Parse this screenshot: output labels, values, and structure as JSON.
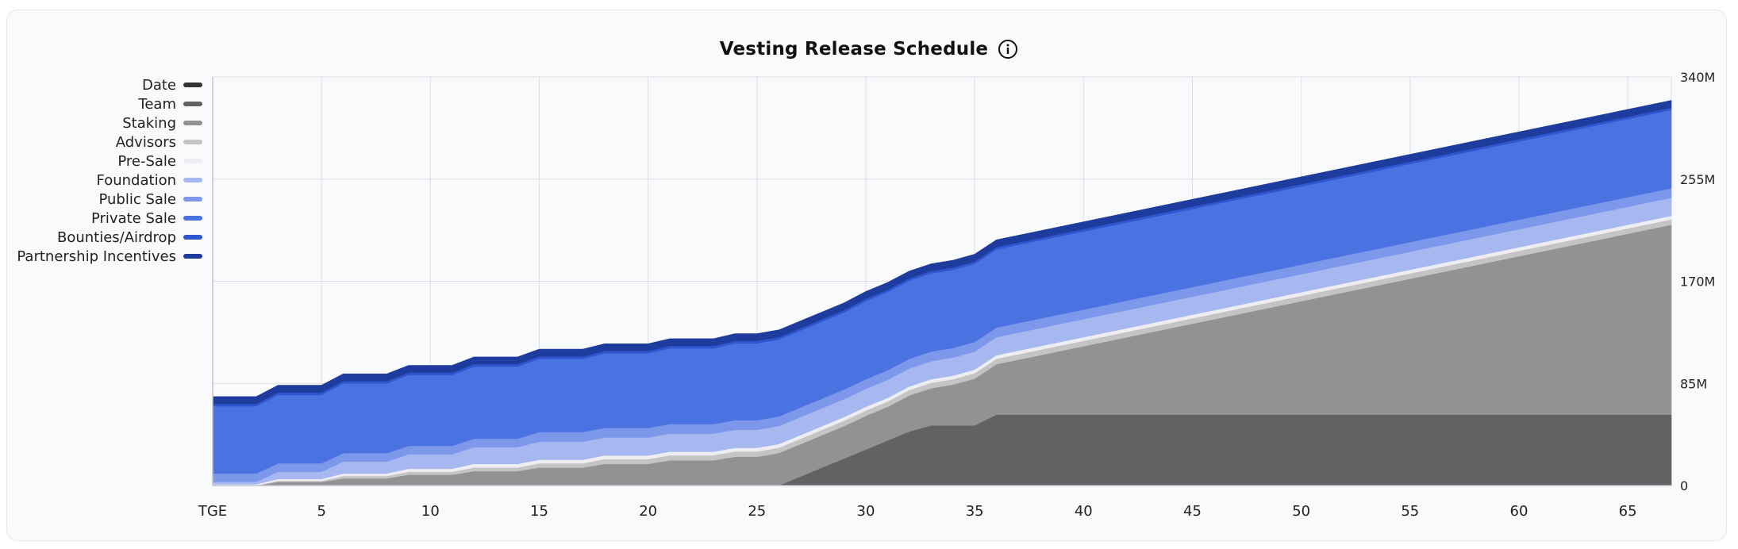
{
  "chart_data": {
    "type": "area",
    "stacked": true,
    "title": "Vesting Release Schedule",
    "x_tick_labels": [
      "TGE",
      "5",
      "10",
      "15",
      "20",
      "25",
      "30",
      "35",
      "40",
      "45",
      "50",
      "55",
      "60",
      "65"
    ],
    "x_tick_values": [
      0,
      5,
      10,
      15,
      20,
      25,
      30,
      35,
      40,
      45,
      50,
      55,
      60,
      65
    ],
    "xlim": [
      0,
      67
    ],
    "y_tick_labels": [
      "0",
      "85M",
      "170M",
      "255M",
      "340M"
    ],
    "y_tick_values": [
      0,
      85,
      170,
      255,
      340
    ],
    "ylim": [
      0,
      340
    ],
    "y_axis_position": "right",
    "grid": true,
    "legend_position": "left",
    "x": [
      0,
      1,
      2,
      3,
      4,
      5,
      6,
      7,
      8,
      9,
      10,
      11,
      12,
      13,
      14,
      15,
      16,
      17,
      18,
      19,
      20,
      21,
      22,
      23,
      24,
      25,
      26,
      27,
      28,
      29,
      30,
      31,
      32,
      33,
      34,
      35,
      36,
      67
    ],
    "series": [
      {
        "name": "Date",
        "color": "#333333",
        "values": [
          0,
          0,
          0,
          0,
          0,
          0,
          0,
          0,
          0,
          0,
          0,
          0,
          0,
          0,
          0,
          0,
          0,
          0,
          0,
          0,
          0,
          0,
          0,
          0,
          0,
          0,
          0,
          0,
          0,
          0,
          0,
          0,
          0,
          0,
          0,
          0,
          0,
          0
        ]
      },
      {
        "name": "Team",
        "color": "#626262",
        "values": [
          0,
          0,
          0,
          0,
          0,
          0,
          0,
          0,
          0,
          0,
          0,
          0,
          0,
          0,
          0,
          0,
          0,
          0,
          0,
          0,
          0,
          0,
          0,
          0,
          0,
          0,
          0,
          7.5,
          15,
          22.5,
          30,
          37.5,
          45,
          50,
          50,
          50,
          59,
          59
        ]
      },
      {
        "name": "Staking",
        "color": "#929292",
        "values": [
          0,
          0,
          0,
          3,
          3,
          3,
          6,
          6,
          6,
          9,
          9,
          9,
          12,
          12,
          12,
          15,
          15,
          15,
          18,
          18,
          18,
          21,
          21,
          21,
          24,
          24,
          27,
          27,
          27,
          27,
          28,
          28,
          30,
          31,
          34,
          39,
          42,
          158
        ]
      },
      {
        "name": "Advisors",
        "color": "#c4c4c4",
        "values": [
          0,
          0,
          0,
          1,
          1,
          1,
          2,
          2,
          2,
          2.5,
          2.5,
          2.5,
          3,
          3,
          3,
          3.5,
          3.5,
          3.5,
          4,
          4,
          4,
          4.2,
          4.2,
          4.2,
          4.4,
          4.4,
          4.5,
          4.5,
          4.5,
          4.5,
          4.5,
          4.5,
          4.5,
          4.5,
          4.5,
          4.5,
          4.5,
          4.5
        ]
      },
      {
        "name": "Pre-Sale",
        "color": "#eeeef2",
        "values": [
          1,
          1,
          1,
          1.5,
          1.5,
          1.5,
          2,
          2,
          2,
          2.5,
          2.5,
          2.5,
          3,
          3,
          3,
          3,
          3,
          3,
          3,
          3,
          3,
          3,
          3,
          3,
          3,
          3,
          3,
          3,
          3,
          3,
          3,
          3,
          3,
          3,
          3,
          3,
          3,
          3
        ]
      },
      {
        "name": "Foundation",
        "color": "#a7b8f0",
        "values": [
          2,
          2,
          2,
          6,
          6,
          6,
          10,
          10,
          10,
          12,
          12,
          12,
          14,
          14,
          14,
          15,
          15,
          15,
          15,
          15,
          15,
          15,
          15,
          15,
          15,
          15,
          15,
          15,
          15,
          15,
          15,
          15,
          15,
          15,
          15,
          15,
          15,
          15
        ]
      },
      {
        "name": "Public Sale",
        "color": "#7d98ea",
        "values": [
          7,
          7,
          7,
          7,
          7,
          7,
          7,
          7,
          7,
          7,
          7,
          7,
          7,
          7,
          7,
          8,
          8,
          8,
          8,
          8,
          8,
          8,
          8,
          8,
          8,
          8,
          8,
          8,
          8,
          8,
          8,
          8,
          8,
          8,
          8,
          8,
          8,
          8
        ]
      },
      {
        "name": "Private Sale",
        "color": "#4a72e0",
        "values": [
          56,
          56,
          56,
          57,
          57,
          57,
          58,
          58,
          58,
          59,
          59,
          59,
          60,
          60,
          60,
          61,
          61,
          61,
          62,
          62,
          62,
          63,
          63,
          63,
          64,
          64,
          64,
          64,
          64,
          64,
          65,
          65,
          65,
          65,
          65,
          65,
          65,
          65
        ]
      },
      {
        "name": "Bounties/Airdrop",
        "color": "#3056cf",
        "values": [
          2,
          2,
          2,
          2,
          2,
          2,
          2,
          2,
          2,
          2,
          2,
          2,
          2,
          2,
          2,
          2,
          2,
          2,
          2,
          2,
          2,
          2,
          2,
          2,
          2,
          2,
          2,
          2,
          2,
          2,
          2,
          2,
          2,
          2,
          2,
          2,
          2,
          2
        ]
      },
      {
        "name": "Partnership Incentives",
        "color": "#1e3c9e",
        "values": [
          6,
          6,
          6,
          6,
          6,
          6,
          6,
          6,
          6,
          6,
          6,
          6,
          6,
          6,
          6,
          6,
          6,
          6,
          6,
          6,
          6,
          6,
          6,
          6,
          6,
          6,
          6,
          6,
          6,
          6,
          6,
          6,
          6,
          6,
          6,
          6,
          6,
          6
        ]
      }
    ]
  }
}
